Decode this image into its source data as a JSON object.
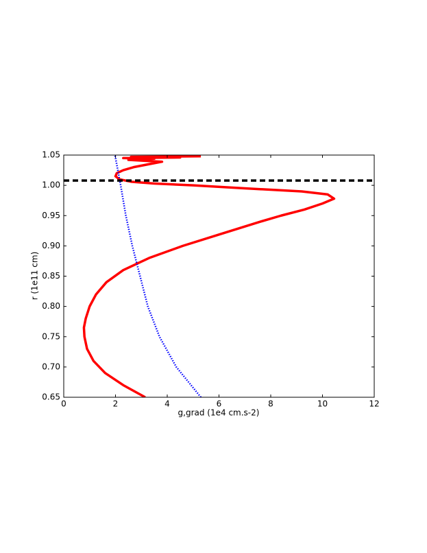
{
  "chart_data": {
    "type": "line",
    "xlabel": "g,grad (1e4 cm.s-2)",
    "ylabel": "r (1e11 cm)",
    "xlim": [
      0,
      12
    ],
    "xticks": [
      0,
      2,
      4,
      6,
      8,
      10,
      12
    ],
    "ylim": [
      0.65,
      1.05
    ],
    "yticks": [
      0.65,
      {
        "value": 0.7,
        "label": "0.70"
      },
      0.75,
      {
        "value": 0.8,
        "label": "0.80"
      },
      0.85,
      {
        "value": 0.9,
        "label": "0.90"
      },
      0.95,
      {
        "value": 1,
        "label": "1.00"
      },
      1.05
    ],
    "series": [
      {
        "color": "#ff0000",
        "style": "solid",
        "x": [
          3.15,
          2.3,
          1.6,
          1.15,
          0.9,
          0.8,
          0.78,
          0.85,
          1.0,
          1.25,
          1.65,
          2.3,
          3.3,
          4.6,
          6.1,
          7.6,
          8.4,
          9.3,
          10.0,
          10.45,
          10.2,
          9.2,
          7.0,
          5.0,
          3.5,
          2.6,
          2.15,
          2.0,
          2.05,
          2.3,
          2.7,
          3.3,
          3.8,
          2.5,
          3.5,
          2.3,
          4.5,
          2.6,
          5.3
        ],
        "values": [
          0.65,
          0.67,
          0.69,
          0.71,
          0.73,
          0.75,
          0.765,
          0.78,
          0.8,
          0.82,
          0.84,
          0.86,
          0.88,
          0.9,
          0.92,
          0.94,
          0.95,
          0.96,
          0.97,
          0.978,
          0.985,
          0.99,
          0.995,
          1.0,
          1.003,
          1.006,
          1.01,
          1.015,
          1.02,
          1.025,
          1.03,
          1.035,
          1.039,
          1.042,
          1.044,
          1.045,
          1.046,
          1.047,
          1.048
        ]
      },
      {
        "color": "#0000ff",
        "style": "dotted",
        "x": [
          5.3,
          4.35,
          3.7,
          3.25,
          2.95,
          2.65,
          2.4,
          2.2,
          1.98
        ],
        "values": [
          0.65,
          0.7,
          0.75,
          0.8,
          0.85,
          0.9,
          0.95,
          1.0,
          1.05
        ]
      },
      {
        "color": "#000000",
        "style": "dashed",
        "x": [
          0,
          12
        ],
        "values": [
          1.008,
          1.008
        ]
      }
    ]
  }
}
